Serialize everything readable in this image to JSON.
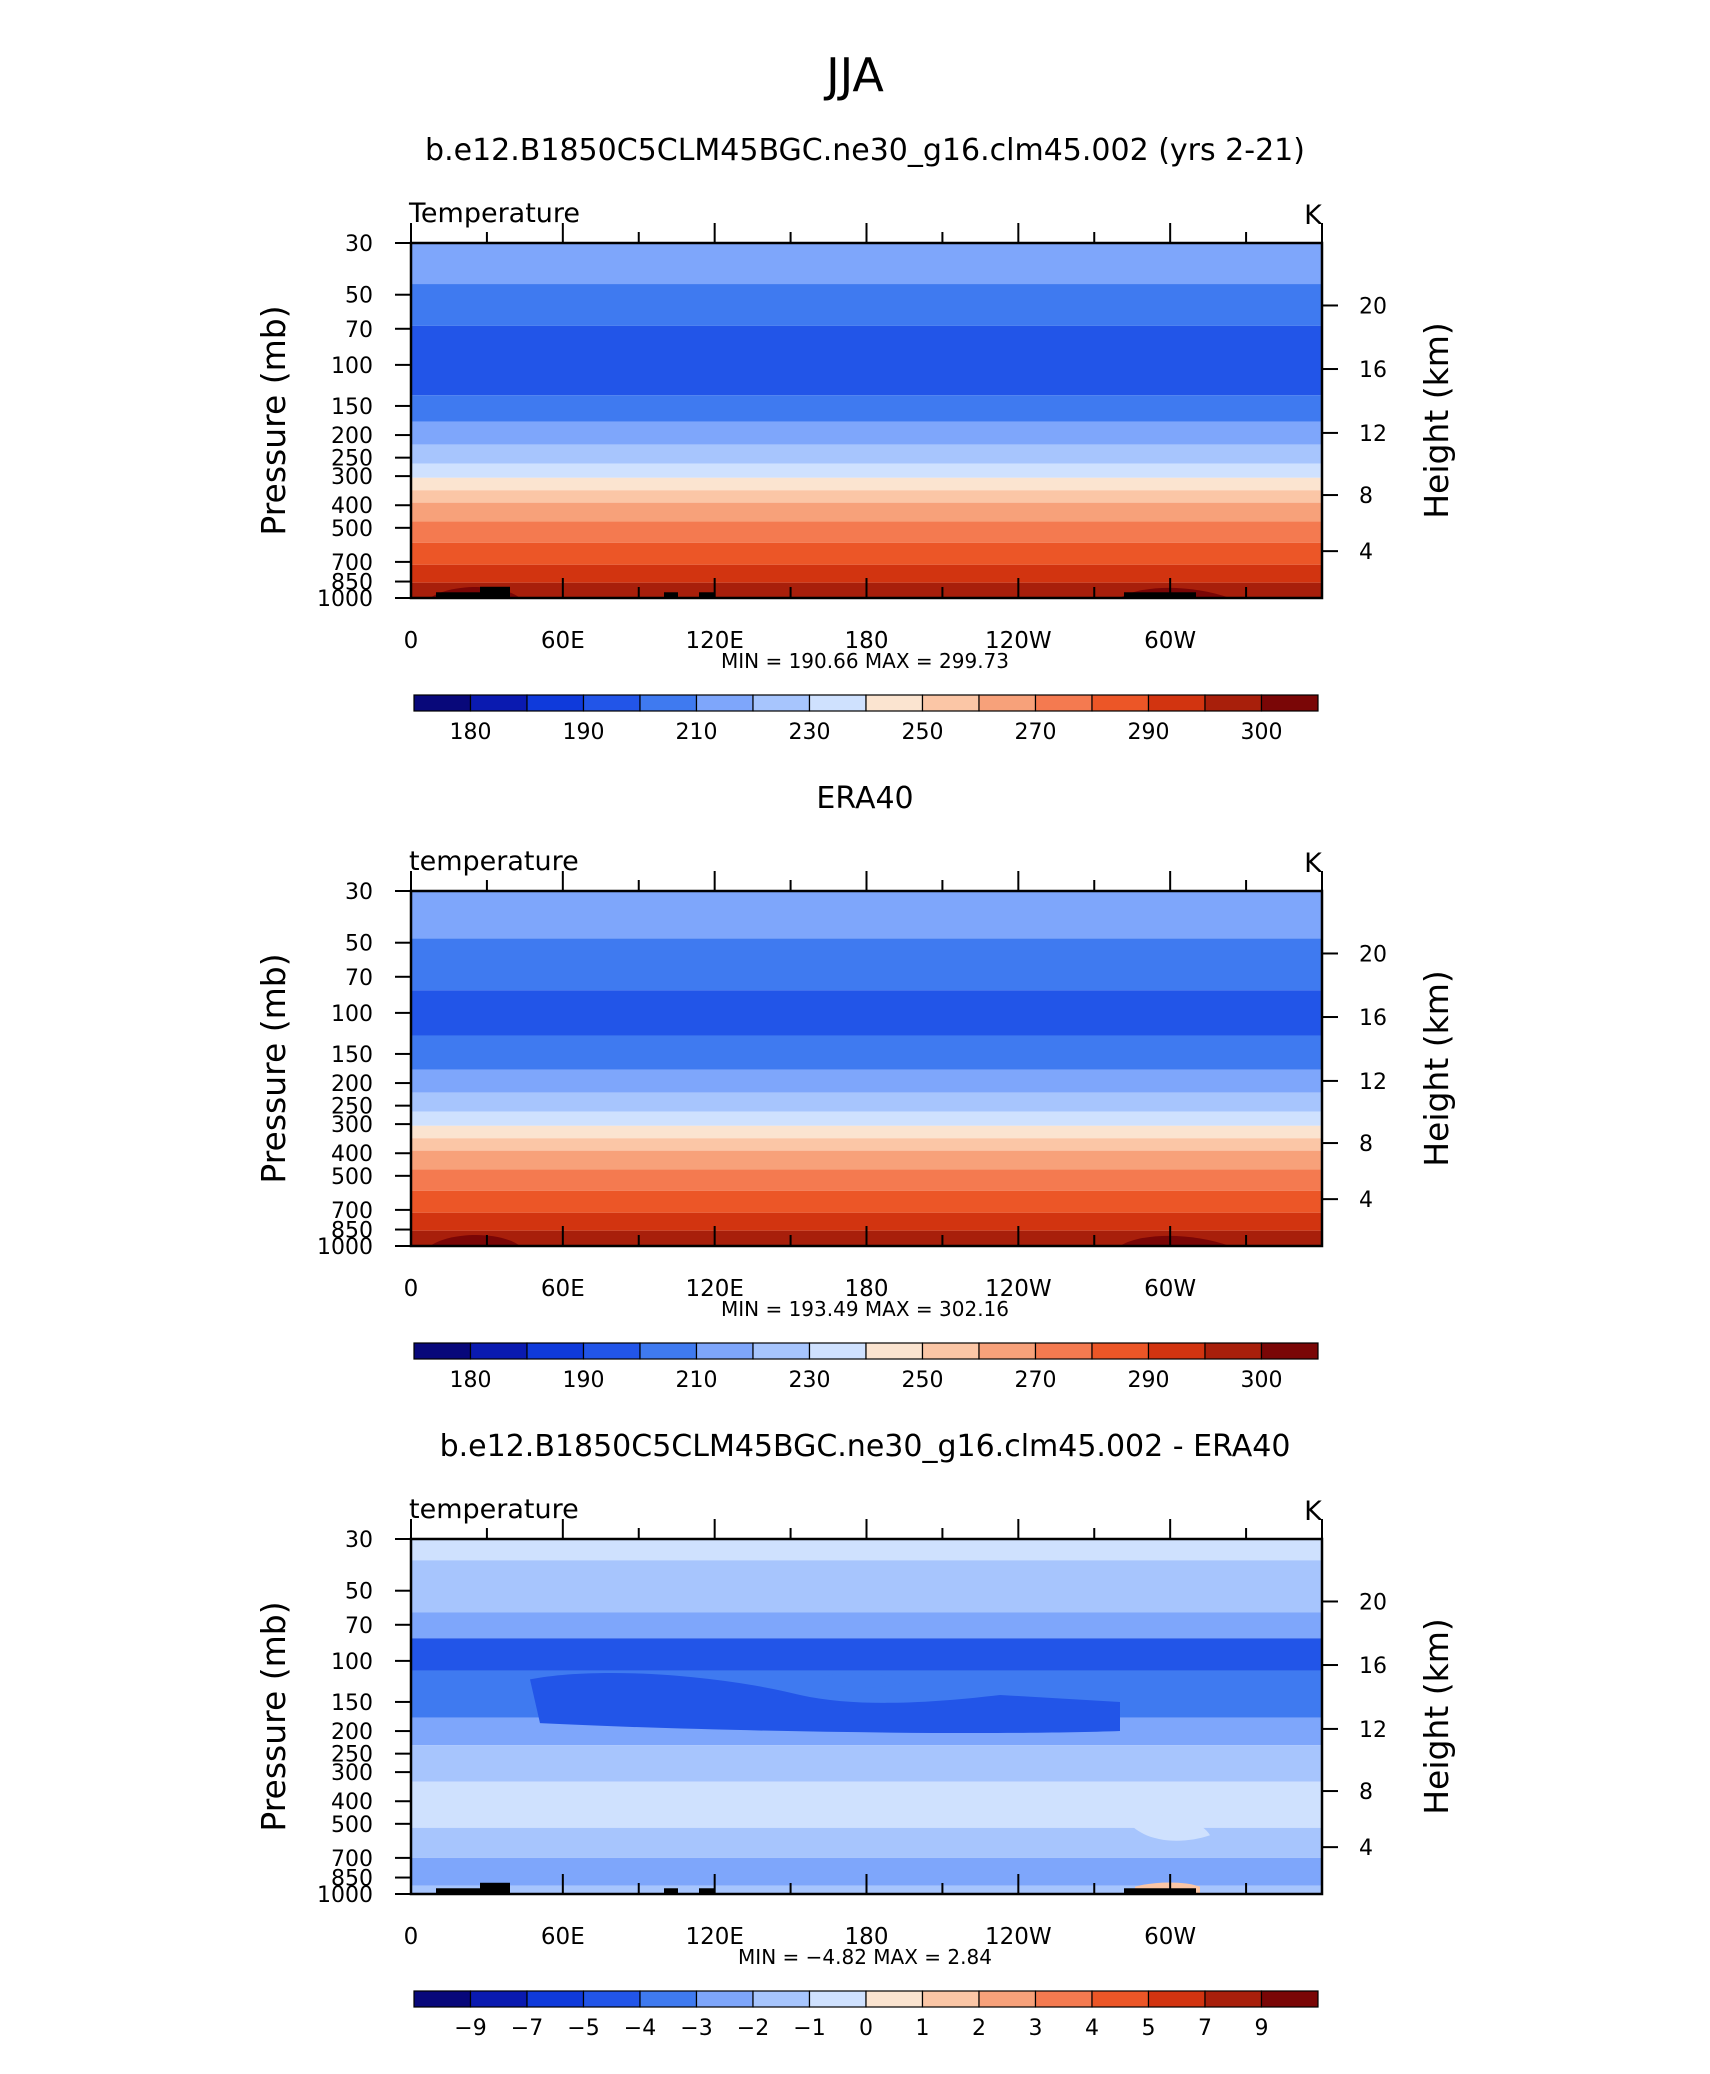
{
  "page_title": "JJA",
  "colors": {
    "temperature_scale": [
      "#08087a",
      "#0a1ab0",
      "#0f3adb",
      "#2255e8",
      "#3f7af0",
      "#7ea6fb",
      "#a7c5fd",
      "#cfe1fe",
      "#fbe4d0",
      "#fbc6a6",
      "#f7a17a",
      "#f47a50",
      "#ec5627",
      "#d23410",
      "#a81f0b",
      "#7a0606"
    ],
    "difference_scale": [
      "#08087a",
      "#0a1ab0",
      "#0f3adb",
      "#2255e8",
      "#3f7af0",
      "#7ea6fb",
      "#a7c5fd",
      "#cfe1fe",
      "#fbe4d0",
      "#fbc6a6",
      "#f7a17a",
      "#f47a50",
      "#ec5627",
      "#d23410",
      "#a81f0b",
      "#7a0606"
    ],
    "topography": "#000000"
  },
  "chart_data": [
    {
      "type": "contour",
      "title": "b.e12.B1850C5CLM45BGC.ne30_g16.clm45.002 (yrs 2-21)",
      "variable_label": "Temperature",
      "units": "K",
      "ylabel": "Pressure (mb)",
      "y2label": "Height (km)",
      "x_ticks": [
        "0",
        "60E",
        "120E",
        "180",
        "120W",
        "60W"
      ],
      "y_ticks": [
        "30",
        "50",
        "70",
        "100",
        "150",
        "200",
        "250",
        "300",
        "400",
        "500",
        "700",
        "850",
        "1000"
      ],
      "y2_ticks": [
        "20",
        "16",
        "12",
        "8",
        "4"
      ],
      "stats": "MIN = 190.66   MAX = 299.73",
      "min": 190.66,
      "max": 299.73,
      "colorbar_labels": [
        "180",
        "190",
        "210",
        "230",
        "250",
        "270",
        "290",
        "300"
      ],
      "pressure_levels_mb": [
        1000,
        850,
        700,
        500,
        400,
        300,
        250,
        200,
        150,
        100,
        70,
        50,
        30
      ],
      "band_levels_mb": [
        30,
        45,
        68,
        135,
        175,
        220,
        265,
        305,
        345,
        390,
        470,
        580,
        720,
        860,
        1000
      ],
      "band_color_indices": [
        5,
        4,
        3,
        4,
        5,
        6,
        7,
        8,
        9,
        10,
        11,
        12,
        13,
        14
      ],
      "topography": true
    },
    {
      "type": "contour",
      "title": "ERA40",
      "variable_label": "temperature",
      "units": "K",
      "ylabel": "Pressure (mb)",
      "y2label": "Height (km)",
      "x_ticks": [
        "0",
        "60E",
        "120E",
        "180",
        "120W",
        "60W"
      ],
      "y_ticks": [
        "30",
        "50",
        "70",
        "100",
        "150",
        "200",
        "250",
        "300",
        "400",
        "500",
        "700",
        "850",
        "1000"
      ],
      "y2_ticks": [
        "20",
        "16",
        "12",
        "8",
        "4"
      ],
      "stats": "MIN = 193.49   MAX = 302.16",
      "min": 193.49,
      "max": 302.16,
      "colorbar_labels": [
        "180",
        "190",
        "210",
        "230",
        "250",
        "270",
        "290",
        "300"
      ],
      "band_levels_mb": [
        30,
        48,
        80,
        125,
        175,
        220,
        265,
        305,
        345,
        390,
        470,
        580,
        720,
        860,
        1000
      ],
      "band_color_indices": [
        5,
        4,
        3,
        4,
        5,
        6,
        7,
        8,
        9,
        10,
        11,
        12,
        13,
        14
      ],
      "topography": false
    },
    {
      "type": "contour",
      "title": "b.e12.B1850C5CLM45BGC.ne30_g16.clm45.002 - ERA40",
      "variable_label": "temperature",
      "units": "K",
      "ylabel": "Pressure (mb)",
      "y2label": "Height (km)",
      "x_ticks": [
        "0",
        "60E",
        "120E",
        "180",
        "120W",
        "60W"
      ],
      "y_ticks": [
        "30",
        "50",
        "70",
        "100",
        "150",
        "200",
        "250",
        "300",
        "400",
        "500",
        "700",
        "850",
        "1000"
      ],
      "y2_ticks": [
        "20",
        "16",
        "12",
        "8",
        "4"
      ],
      "stats": "MIN =    −4.82   MAX =      2.84",
      "min": -4.82,
      "max": 2.84,
      "colorbar_labels": [
        "−9",
        "−7",
        "−5",
        "−4",
        "−3",
        "−2",
        "−1",
        "0",
        "1",
        "2",
        "3",
        "4",
        "5",
        "7",
        "9"
      ],
      "band_levels_mb": [
        30,
        37,
        62,
        80,
        110,
        175,
        230,
        330,
        520,
        700,
        920,
        1000
      ],
      "band_color_indices": [
        7,
        6,
        5,
        3,
        4,
        5,
        6,
        7,
        6,
        5,
        6
      ],
      "topography": true
    }
  ]
}
